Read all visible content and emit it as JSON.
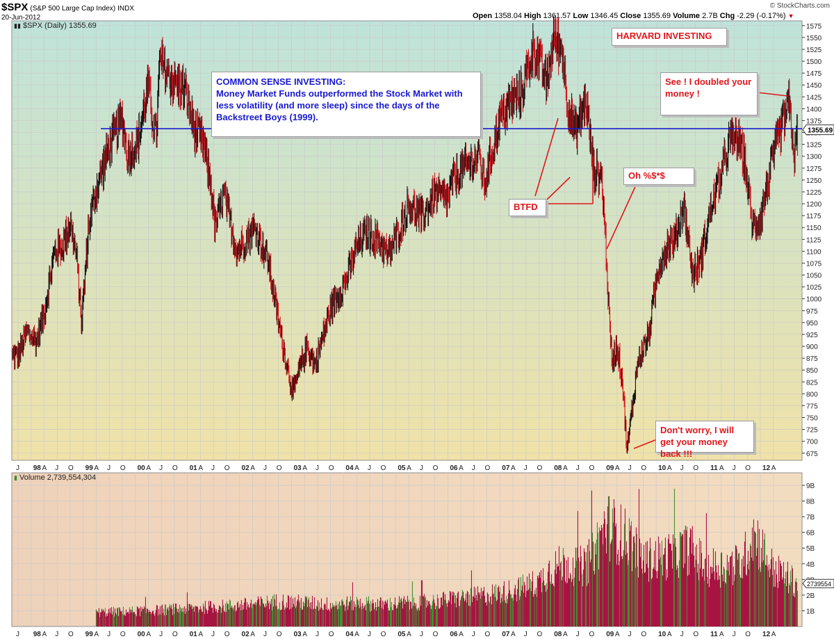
{
  "header": {
    "symbol": "$SPX",
    "description": "(S&P 500 Large Cap Index)",
    "exchange": "INDX",
    "date": "20-Jun-2012",
    "open_label": "Open",
    "open": "1358.04",
    "high_label": "High",
    "high": "1361.57",
    "low_label": "Low",
    "low": "1346.45",
    "close_label": "Close",
    "close": "1355.69",
    "volume_label": "Volume",
    "volume": "2.7B",
    "chg_label": "Chg",
    "chg": "-2.29 (-0.17%)",
    "chg_arrow": "▼",
    "logo": "© StockCharts.com"
  },
  "price_panel": {
    "legend": "$SPX (Daily) 1355.69",
    "last_value_tag": "1355.69"
  },
  "volume_panel": {
    "legend": "Volume 2,739,554,304",
    "last_value_tag": "2739554"
  },
  "annotations": {
    "harvard": "HARVARD INVESTING",
    "common_sense_title": "COMMON SENSE INVESTING:",
    "common_sense_body": "Money Market Funds outperformed the Stock Market with less volatility (and more sleep) since the days of the Backstreet Boys (1999).",
    "doubled": "See !  I doubled your money !",
    "oh": "Oh %$*$",
    "btfd": "BTFD",
    "dont_worry": "Don't worry, I will get your money back !!!"
  },
  "colors": {
    "up_bar": "#111111",
    "down_bar": "#d0141b",
    "horizontal_line": "#1a1ad0",
    "annotation_red": "#e0161b",
    "annotation_blue": "#1a1ad0",
    "volume_down": "#a50b3c",
    "volume_up": "#3e8a2e",
    "grid": "#c8c8c8"
  },
  "chart_data": [
    {
      "type": "line",
      "title": "$SPX (Daily)",
      "ylim": [
        660,
        1585
      ],
      "y_ticks": [
        675,
        700,
        725,
        750,
        775,
        800,
        825,
        850,
        875,
        900,
        925,
        950,
        975,
        1000,
        1025,
        1050,
        1075,
        1100,
        1125,
        1150,
        1175,
        1200,
        1225,
        1250,
        1275,
        1300,
        1325,
        1350,
        1375,
        1400,
        1425,
        1450,
        1475,
        1500,
        1525,
        1550,
        1575
      ],
      "x_labels": [
        "J",
        "98",
        "A",
        "J",
        "O",
        "99",
        "A",
        "J",
        "O",
        "00",
        "A",
        "J",
        "O",
        "01",
        "A",
        "J",
        "O",
        "02",
        "A",
        "J",
        "O",
        "03",
        "A",
        "J",
        "O",
        "04",
        "A",
        "J",
        "O",
        "05",
        "A",
        "J",
        "O",
        "06",
        "A",
        "J",
        "O",
        "07",
        "A",
        "J",
        "O",
        "08",
        "A",
        "J",
        "O",
        "09",
        "A",
        "J",
        "O",
        "10",
        "A",
        "J",
        "O",
        "11",
        "A",
        "J",
        "O",
        "12",
        "A"
      ],
      "series": [
        {
          "name": "$SPX",
          "x": [
            1997.5,
            1997.67,
            1997.85,
            1998.0,
            1998.2,
            1998.35,
            1998.5,
            1998.62,
            1998.72,
            1998.85,
            1999.0,
            1999.25,
            1999.5,
            1999.6,
            1999.8,
            2000.0,
            2000.05,
            2000.15,
            2000.22,
            2000.45,
            2000.7,
            2000.9,
            2001.05,
            2001.2,
            2001.28,
            2001.45,
            2001.7,
            2001.9,
            2002.05,
            2002.3,
            2002.55,
            2002.78,
            2002.9,
            2003.05,
            2003.2,
            2003.5,
            2003.8,
            2004.0,
            2004.2,
            2004.45,
            2004.6,
            2004.8,
            2005.0,
            2005.25,
            2005.5,
            2005.75,
            2005.85,
            2006.0,
            2006.35,
            2006.45,
            2006.75,
            2007.0,
            2007.15,
            2007.4,
            2007.6,
            2007.65,
            2007.78,
            2007.95,
            2008.05,
            2008.2,
            2008.4,
            2008.55,
            2008.7,
            2008.78,
            2008.85,
            2008.9,
            2009.0,
            2009.1,
            2009.19,
            2009.4,
            2009.6,
            2009.8,
            2010.0,
            2010.1,
            2010.28,
            2010.45,
            2010.6,
            2010.8,
            2011.0,
            2011.15,
            2011.3,
            2011.45,
            2011.6,
            2011.75,
            2011.9,
            2012.0,
            2012.15,
            2012.3,
            2012.4,
            2012.47
          ],
          "values": [
            880,
            930,
            910,
            970,
            1100,
            1110,
            1160,
            1090,
            950,
            1150,
            1230,
            1320,
            1380,
            1300,
            1330,
            1450,
            1400,
            1340,
            1500,
            1460,
            1440,
            1350,
            1330,
            1240,
            1150,
            1220,
            1100,
            1130,
            1150,
            1080,
            920,
            800,
            850,
            900,
            860,
            980,
            1040,
            1110,
            1140,
            1120,
            1090,
            1140,
            1200,
            1170,
            1220,
            1210,
            1250,
            1270,
            1300,
            1240,
            1380,
            1420,
            1430,
            1530,
            1470,
            1450,
            1550,
            1520,
            1410,
            1350,
            1420,
            1270,
            1260,
            1120,
            950,
            870,
            900,
            830,
            680,
            870,
            920,
            1070,
            1120,
            1120,
            1200,
            1050,
            1080,
            1190,
            1260,
            1330,
            1340,
            1290,
            1150,
            1170,
            1250,
            1300,
            1360,
            1410,
            1300,
            1356
          ]
        },
        {
          "name": "Horizontal line",
          "values": [
            1358
          ]
        }
      ]
    },
    {
      "type": "bar",
      "title": "Volume",
      "ylim": [
        0,
        9800000000
      ],
      "y_ticks_labels": [
        "1B",
        "2B",
        "3B",
        "4B",
        "5B",
        "6B",
        "7B",
        "8B",
        "9B"
      ],
      "series": [
        {
          "name": "Volume",
          "x": [
            1999.0,
            1999.5,
            2000.0,
            2000.5,
            2001.0,
            2001.5,
            2002.0,
            2002.5,
            2003.0,
            2003.5,
            2004.0,
            2004.5,
            2005.0,
            2005.5,
            2006.0,
            2006.5,
            2007.0,
            2007.5,
            2007.7,
            2008.0,
            2008.4,
            2008.8,
            2009.0,
            2009.25,
            2009.5,
            2010.0,
            2010.4,
            2010.7,
            2011.0,
            2011.4,
            2011.62,
            2012.0,
            2012.47
          ],
          "values": [
            900000000,
            950000000,
            1000000000,
            1100000000,
            1200000000,
            1300000000,
            1400000000,
            1600000000,
            1500000000,
            1400000000,
            1500000000,
            1400000000,
            1500000000,
            1600000000,
            1800000000,
            2000000000,
            2300000000,
            2800000000,
            3600000000,
            4000000000,
            3800000000,
            6500000000,
            6000000000,
            5500000000,
            4200000000,
            4500000000,
            5000000000,
            3800000000,
            3800000000,
            4000000000,
            6000000000,
            3600000000,
            2740000000
          ]
        }
      ]
    }
  ]
}
